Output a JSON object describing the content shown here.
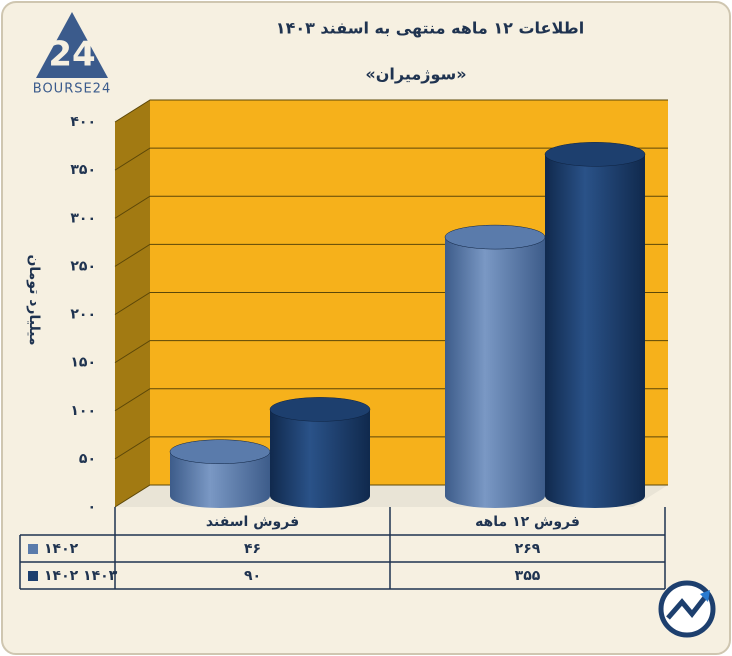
{
  "logo_text": "BOURSE24",
  "chart_data": {
    "type": "bar",
    "title": "اطلاعات ۱۲ ماهه منتهی به اسفند ۱۴۰۳",
    "subtitle": "«سوژمیران»",
    "y_label": "میلیارد تومان",
    "categories": [
      "فروش اسفند",
      "فروش ۱۲ ماهه"
    ],
    "series": [
      {
        "name": "۱۴۰۲",
        "color": "#5a7bab",
        "values": [
          46,
          269
        ],
        "value_labels": [
          "۴۶",
          "۲۶۹"
        ]
      },
      {
        "name": "۱۴۰۲ ۱۴۰۳",
        "color": "#1d3f6e",
        "values": [
          90,
          355
        ],
        "value_labels": [
          "۹۰",
          "۳۵۵"
        ]
      }
    ],
    "ylim": [
      0,
      400
    ],
    "yticks": [
      {
        "value": 0,
        "label": "۰"
      },
      {
        "value": 50,
        "label": "۵۰"
      },
      {
        "value": 100,
        "label": "۱۰۰"
      },
      {
        "value": 150,
        "label": "۱۵۰"
      },
      {
        "value": 200,
        "label": "۲۰۰"
      },
      {
        "value": 250,
        "label": "۲۵۰"
      },
      {
        "value": 300,
        "label": "۳۰۰"
      },
      {
        "value": 350,
        "label": "۳۵۰"
      },
      {
        "value": 400,
        "label": "۴۰۰"
      }
    ],
    "grid": true
  }
}
